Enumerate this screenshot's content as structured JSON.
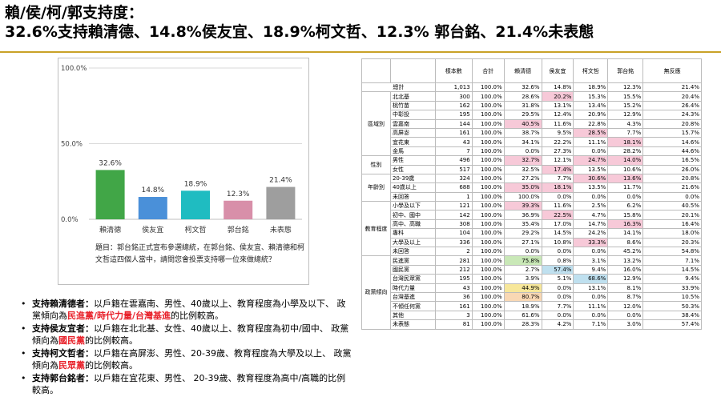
{
  "title": {
    "line1": "賴/侯/柯/郭支持度：",
    "line2": "32.6%支持賴清德、14.8%侯友宜、18.9%柯文哲、12.3% 郭台銘、21.4%未表態"
  },
  "chart_data": {
    "type": "bar",
    "categories": [
      "賴清德",
      "侯友宜",
      "柯文哲",
      "郭台銘",
      "未表態"
    ],
    "values": [
      32.6,
      14.8,
      18.9,
      12.3,
      21.4
    ],
    "value_labels": [
      "32.6%",
      "14.8%",
      "18.9%",
      "12.3%",
      "21.4%"
    ],
    "colors": [
      "#41a647",
      "#4a90d9",
      "#1fbcc1",
      "#d88fa9",
      "#9e9e9e"
    ],
    "ylim": [
      0,
      100
    ],
    "yticks": [
      0,
      50,
      100
    ],
    "ytick_labels": [
      "0.0%",
      "50.0%",
      "100.0%"
    ],
    "grid": true,
    "caption": "題目：郭台銘正式宣布參選總統，在郭台銘、侯友宜、賴清德和柯文哲這四個人當中，請問您會投票支持哪一位來做總統？"
  },
  "bullets": [
    {
      "head": "支持賴清德者：",
      "parts": [
        {
          "t": "以戶籍在雲嘉南、男性、40歲以上、教育程度為小學及以下、 政黨傾向為",
          "hl": false
        },
        {
          "t": "民進黨/時代力量/台灣基進",
          "hl": true
        },
        {
          "t": "的比例較高。",
          "hl": false
        }
      ]
    },
    {
      "head": "支持侯友宜者：",
      "parts": [
        {
          "t": "以戶籍在北北基、女性、40歲以上、教育程度為初中/國中、 政黨傾向為",
          "hl": false
        },
        {
          "t": "國民黨",
          "hl": true
        },
        {
          "t": "的比例較高。",
          "hl": false
        }
      ]
    },
    {
      "head": "支持柯文哲者：",
      "parts": [
        {
          "t": "以戶籍在高屏澎、男性、20-39歲、教育程度為大學及以上、 政黨傾向為",
          "hl": false
        },
        {
          "t": "民眾黨",
          "hl": true
        },
        {
          "t": "的比例較高。",
          "hl": false
        }
      ]
    },
    {
      "head": "支持郭台銘者：",
      "parts": [
        {
          "t": "以戶籍在宜花東、男性、 20-39歲、教育程度為高中/高職的比例較高。",
          "hl": false
        }
      ]
    }
  ],
  "table": {
    "headers": [
      "",
      "",
      "樣本數",
      "合計",
      "賴清德",
      "侯友宜",
      "柯文哲",
      "郭台銘",
      "無反應"
    ],
    "total": {
      "label": "總計",
      "values": [
        "1,013",
        "100.0%",
        "32.6%",
        "14.8%",
        "18.9%",
        "12.3%",
        "21.4%"
      ]
    },
    "groups": [
      {
        "name": "區域別",
        "rows": [
          {
            "label": "北北基",
            "values": [
              "300",
              "100.0%",
              "28.6%",
              "20.2%",
              "15.3%",
              "15.5%",
              "20.4%"
            ],
            "hl": [
              null,
              null,
              null,
              "pink",
              null,
              null,
              null
            ]
          },
          {
            "label": "桃竹苗",
            "values": [
              "162",
              "100.0%",
              "31.8%",
              "13.1%",
              "13.4%",
              "15.2%",
              "26.4%"
            ],
            "hl": [
              null,
              null,
              null,
              null,
              null,
              null,
              null
            ]
          },
          {
            "label": "中彰投",
            "values": [
              "195",
              "100.0%",
              "29.5%",
              "12.4%",
              "20.9%",
              "12.9%",
              "24.3%"
            ],
            "hl": [
              null,
              null,
              null,
              null,
              null,
              null,
              null
            ]
          },
          {
            "label": "雲嘉南",
            "values": [
              "144",
              "100.0%",
              "40.5%",
              "11.6%",
              "22.8%",
              "4.3%",
              "20.8%"
            ],
            "hl": [
              null,
              null,
              "pink",
              null,
              null,
              null,
              null
            ]
          },
          {
            "label": "高屏澎",
            "values": [
              "161",
              "100.0%",
              "38.7%",
              "9.5%",
              "28.5%",
              "7.7%",
              "15.7%"
            ],
            "hl": [
              null,
              null,
              null,
              null,
              "pink",
              null,
              null
            ]
          },
          {
            "label": "宜花東",
            "values": [
              "43",
              "100.0%",
              "34.1%",
              "22.2%",
              "11.1%",
              "18.1%",
              "14.6%"
            ],
            "hl": [
              null,
              null,
              null,
              null,
              null,
              "pink",
              null
            ]
          },
          {
            "label": "金馬",
            "values": [
              "7",
              "100.0%",
              "0.0%",
              "27.3%",
              "0.0%",
              "28.2%",
              "44.6%"
            ],
            "hl": [
              null,
              null,
              null,
              null,
              null,
              null,
              null
            ]
          }
        ]
      },
      {
        "name": "性別",
        "rows": [
          {
            "label": "男性",
            "values": [
              "496",
              "100.0%",
              "32.7%",
              "12.1%",
              "24.7%",
              "14.0%",
              "16.5%"
            ],
            "hl": [
              null,
              null,
              "pink",
              null,
              "pink",
              "pink",
              null
            ]
          },
          {
            "label": "女性",
            "values": [
              "517",
              "100.0%",
              "32.5%",
              "17.4%",
              "13.5%",
              "10.6%",
              "26.0%"
            ],
            "hl": [
              null,
              null,
              null,
              "pink",
              null,
              null,
              null
            ]
          }
        ]
      },
      {
        "name": "年齡別",
        "rows": [
          {
            "label": "20-39歲",
            "values": [
              "324",
              "100.0%",
              "27.2%",
              "7.7%",
              "30.6%",
              "13.6%",
              "20.8%"
            ],
            "hl": [
              null,
              null,
              null,
              null,
              "pink",
              "pink",
              null
            ]
          },
          {
            "label": "40歲以上",
            "values": [
              "688",
              "100.0%",
              "35.0%",
              "18.1%",
              "13.5%",
              "11.7%",
              "21.6%"
            ],
            "hl": [
              null,
              null,
              "pink",
              "pink",
              null,
              null,
              null
            ]
          },
          {
            "label": "未回答",
            "values": [
              "1",
              "100.0%",
              "100.0%",
              "0.0%",
              "0.0%",
              "0.0%",
              "0.0%"
            ],
            "hl": [
              null,
              null,
              null,
              null,
              null,
              null,
              null
            ]
          }
        ]
      },
      {
        "name": "教育程度",
        "rows": [
          {
            "label": "小學及以下",
            "values": [
              "121",
              "100.0%",
              "39.3%",
              "11.6%",
              "2.5%",
              "6.2%",
              "40.5%"
            ],
            "hl": [
              null,
              null,
              "pink",
              null,
              null,
              null,
              null
            ]
          },
          {
            "label": "初中、國中",
            "values": [
              "142",
              "100.0%",
              "36.9%",
              "22.5%",
              "4.7%",
              "15.8%",
              "20.1%"
            ],
            "hl": [
              null,
              null,
              null,
              "pink",
              null,
              null,
              null
            ]
          },
          {
            "label": "高中、高職",
            "values": [
              "308",
              "100.0%",
              "35.4%",
              "17.0%",
              "14.7%",
              "16.3%",
              "16.4%"
            ],
            "hl": [
              null,
              null,
              null,
              null,
              null,
              "pink",
              null
            ]
          },
          {
            "label": "專科",
            "values": [
              "104",
              "100.0%",
              "29.2%",
              "14.5%",
              "24.2%",
              "14.1%",
              "18.0%"
            ],
            "hl": [
              null,
              null,
              null,
              null,
              null,
              null,
              null
            ]
          },
          {
            "label": "大學及以上",
            "values": [
              "336",
              "100.0%",
              "27.1%",
              "10.8%",
              "33.3%",
              "8.6%",
              "20.3%"
            ],
            "hl": [
              null,
              null,
              null,
              null,
              "pink",
              null,
              null
            ]
          },
          {
            "label": "未回答",
            "values": [
              "2",
              "100.0%",
              "0.0%",
              "0.0%",
              "0.0%",
              "45.2%",
              "54.8%"
            ],
            "hl": [
              null,
              null,
              null,
              null,
              null,
              null,
              null
            ]
          }
        ]
      },
      {
        "name": "政黨傾向",
        "rows": [
          {
            "label": "民進黨",
            "values": [
              "281",
              "100.0%",
              "75.8%",
              "0.8%",
              "3.1%",
              "13.2%",
              "7.1%"
            ],
            "hl": [
              null,
              null,
              "green",
              null,
              null,
              null,
              null
            ]
          },
          {
            "label": "國民黨",
            "values": [
              "212",
              "100.0%",
              "2.7%",
              "57.4%",
              "9.4%",
              "16.0%",
              "14.5%"
            ],
            "hl": [
              null,
              null,
              null,
              "blue",
              null,
              null,
              null
            ]
          },
          {
            "label": "台灣民眾黨",
            "values": [
              "195",
              "100.0%",
              "3.9%",
              "5.1%",
              "68.6%",
              "12.9%",
              "9.4%"
            ],
            "hl": [
              null,
              null,
              null,
              null,
              "blue",
              null,
              null
            ]
          },
          {
            "label": "時代力量",
            "values": [
              "43",
              "100.0%",
              "44.9%",
              "0.0%",
              "13.1%",
              "8.1%",
              "33.9%"
            ],
            "hl": [
              null,
              null,
              "yellow",
              null,
              null,
              null,
              null
            ]
          },
          {
            "label": "台灣基進",
            "values": [
              "36",
              "100.0%",
              "80.7%",
              "0.0%",
              "0.0%",
              "8.7%",
              "10.5%"
            ],
            "hl": [
              null,
              null,
              "orange",
              null,
              null,
              null,
              null
            ]
          },
          {
            "label": "不傾任何黨",
            "values": [
              "161",
              "100.0%",
              "18.9%",
              "7.7%",
              "11.1%",
              "12.0%",
              "50.3%"
            ],
            "hl": [
              null,
              null,
              null,
              null,
              null,
              null,
              null
            ]
          },
          {
            "label": "其他",
            "values": [
              "3",
              "100.0%",
              "61.6%",
              "0.0%",
              "0.0%",
              "0.0%",
              "38.4%"
            ],
            "hl": [
              null,
              null,
              null,
              null,
              null,
              null,
              null
            ]
          },
          {
            "label": "未表態",
            "values": [
              "81",
              "100.0%",
              "28.3%",
              "4.2%",
              "7.1%",
              "3.0%",
              "57.4%"
            ],
            "hl": [
              null,
              null,
              null,
              null,
              null,
              null,
              null
            ]
          }
        ]
      }
    ]
  }
}
